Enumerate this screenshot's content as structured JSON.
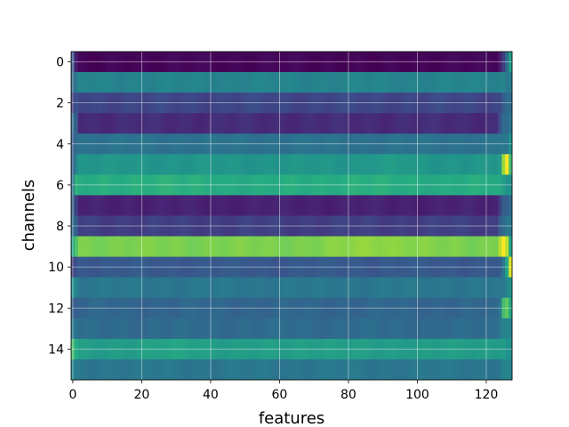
{
  "chart_data": {
    "type": "heatmap",
    "title": "",
    "xlabel": "features",
    "ylabel": "channels",
    "colormap": "viridis",
    "grid": true,
    "xlim": [
      -0.5,
      127.5
    ],
    "ylim": [
      15.5,
      -0.5
    ],
    "x_ticks": [
      0,
      20,
      40,
      60,
      80,
      100,
      120
    ],
    "y_ticks": [
      0,
      2,
      4,
      6,
      8,
      10,
      12,
      14
    ],
    "n_features": 128,
    "n_channels": 16,
    "value_range": [
      0,
      1
    ],
    "rows": [
      {
        "channel": 0,
        "base": 0.02,
        "start": [
          0.25,
          0.1
        ],
        "end": [
          0.1,
          0.2,
          0.35,
          0.55
        ],
        "dips": [
          [
            6,
            3,
            -0.02
          ],
          [
            88,
            4,
            -0.02
          ]
        ]
      },
      {
        "channel": 1,
        "base": 0.45,
        "start": [
          0.35,
          0.4
        ],
        "end": [
          0.45,
          0.45,
          0.4,
          0.42
        ],
        "dips": []
      },
      {
        "channel": 2,
        "base": 0.22,
        "start": [
          0.2,
          0.25
        ],
        "end": [
          0.22,
          0.3,
          0.35,
          0.35
        ],
        "dips": []
      },
      {
        "channel": 3,
        "base": 0.15,
        "start": [
          0.35,
          0.3
        ],
        "end": [
          0.25,
          0.35,
          0.35,
          0.4
        ],
        "dips": []
      },
      {
        "channel": 4,
        "base": 0.38,
        "start": [
          0.3,
          0.35
        ],
        "end": [
          0.4,
          0.4,
          0.4,
          0.5
        ],
        "dips": []
      },
      {
        "channel": 5,
        "base": 0.52,
        "start": [
          0.3,
          0.45
        ],
        "end": [
          0.55,
          0.85,
          1.0,
          0.7
        ],
        "dips": [
          [
            92,
            6,
            0.02
          ]
        ]
      },
      {
        "channel": 6,
        "base": 0.62,
        "start": [
          0.4,
          0.65
        ],
        "end": [
          0.6,
          0.55,
          0.5,
          0.5
        ],
        "dips": [
          [
            25,
            6,
            0.03
          ],
          [
            82,
            6,
            0.02
          ]
        ]
      },
      {
        "channel": 7,
        "base": 0.12,
        "start": [
          0.3,
          0.2
        ],
        "end": [
          0.2,
          0.3,
          0.3,
          0.35
        ],
        "dips": []
      },
      {
        "channel": 8,
        "base": 0.2,
        "start": [
          0.35,
          0.3
        ],
        "end": [
          0.3,
          0.35,
          0.4,
          0.4
        ],
        "dips": []
      },
      {
        "channel": 9,
        "base": 0.8,
        "start": [
          0.6,
          0.72
        ],
        "end": [
          0.9,
          1.0,
          0.9,
          0.6
        ],
        "dips": [
          [
            88,
            8,
            0.04
          ]
        ]
      },
      {
        "channel": 10,
        "base": 0.28,
        "start": [
          0.2,
          0.25
        ],
        "end": [
          0.3,
          0.4,
          0.6,
          0.95
        ],
        "dips": []
      },
      {
        "channel": 11,
        "base": 0.4,
        "start": [
          0.5,
          0.45
        ],
        "end": [
          0.4,
          0.4,
          0.45,
          0.5
        ],
        "dips": []
      },
      {
        "channel": 12,
        "base": 0.33,
        "start": [
          0.3,
          0.3
        ],
        "end": [
          0.4,
          0.7,
          0.75,
          0.6
        ],
        "dips": []
      },
      {
        "channel": 13,
        "base": 0.35,
        "start": [
          0.4,
          0.38
        ],
        "end": [
          0.4,
          0.45,
          0.45,
          0.45
        ],
        "dips": []
      },
      {
        "channel": 14,
        "base": 0.55,
        "start": [
          0.7,
          0.62
        ],
        "end": [
          0.55,
          0.55,
          0.5,
          0.5
        ],
        "dips": [
          [
            30,
            8,
            0.03
          ],
          [
            70,
            6,
            0.02
          ]
        ]
      },
      {
        "channel": 15,
        "base": 0.4,
        "start": [
          0.45,
          0.42
        ],
        "end": [
          0.4,
          0.45,
          0.45,
          0.45
        ],
        "dips": []
      }
    ]
  }
}
